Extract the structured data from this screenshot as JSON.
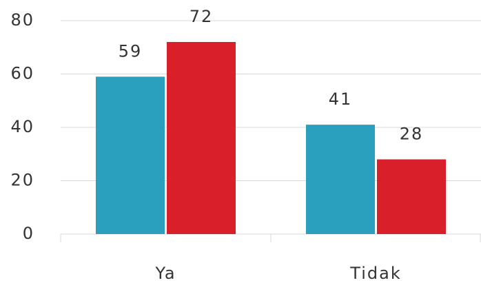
{
  "chart_data": {
    "type": "bar",
    "categories": [
      "Ya",
      "Tidak"
    ],
    "series": [
      {
        "color": "#2aa0be",
        "values": [
          59,
          41
        ]
      },
      {
        "color": "#d9202a",
        "values": [
          72,
          28
        ]
      }
    ],
    "ylim": [
      0,
      80
    ],
    "yticks": [
      0,
      20,
      40,
      60,
      80
    ],
    "grid": true
  }
}
